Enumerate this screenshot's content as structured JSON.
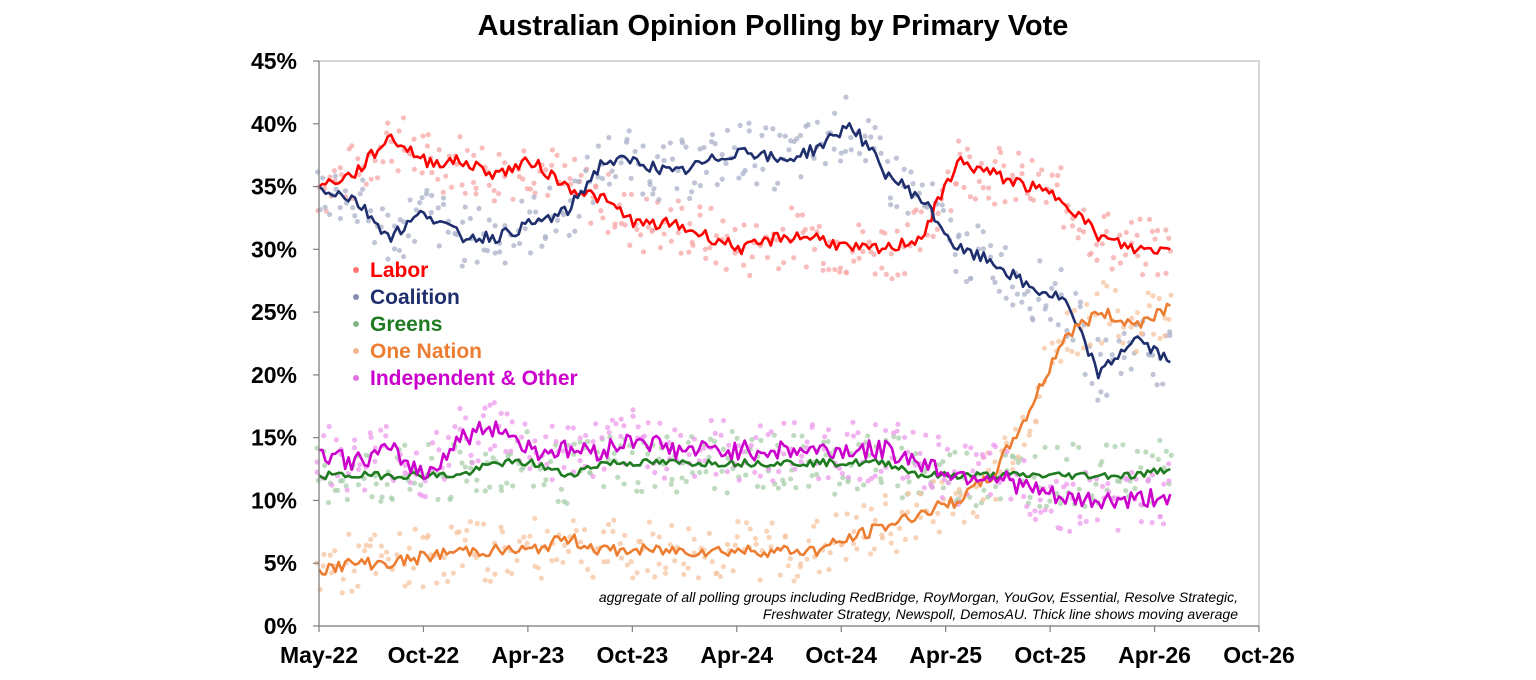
{
  "chart_data": {
    "type": "line",
    "title": "Australian Opinion Polling by Primary Vote",
    "x_ticks": [
      "May-22",
      "Oct-22",
      "Apr-23",
      "Oct-23",
      "Apr-24",
      "Oct-24",
      "Apr-25",
      "Oct-25",
      "Apr-26",
      "Oct-26"
    ],
    "y_ticks": [
      "0%",
      "5%",
      "10%",
      "15%",
      "20%",
      "25%",
      "30%",
      "35%",
      "40%",
      "45%"
    ],
    "ylim": [
      0,
      45
    ],
    "y_unit": "%",
    "grid": false,
    "legend_position": "left",
    "note_lines": [
      "aggregate of all polling groups including RedBridge, RoyMorgan, YouGov, Essential, Resolve Strategic,",
      "Freshwater Strategy, Newspoll, DemosAU. Thick line shows moving average"
    ],
    "x": [
      "2022-05",
      "2022-07",
      "2022-09",
      "2022-11",
      "2023-01",
      "2023-03",
      "2023-05",
      "2023-07",
      "2023-09",
      "2023-11",
      "2024-01",
      "2024-03",
      "2024-05",
      "2024-07",
      "2024-09",
      "2024-11",
      "2025-01",
      "2025-03",
      "2025-05",
      "2025-07",
      "2025-09",
      "2025-11",
      "2026-01",
      "2026-03",
      "2026-05"
    ],
    "series": [
      {
        "name": "Labor",
        "color": "#ff0000",
        "values": [
          35,
          36,
          39,
          37,
          37,
          36,
          37,
          35,
          34,
          32,
          32,
          31,
          30,
          31,
          31,
          30,
          30,
          31,
          37,
          36,
          35,
          34,
          31,
          30,
          30
        ]
      },
      {
        "name": "Coalition",
        "color": "#1f2f6e",
        "values": [
          35,
          34,
          31,
          33,
          31,
          31,
          32,
          33,
          37,
          37,
          36,
          37,
          38,
          37,
          38,
          40,
          36,
          34,
          30,
          29,
          27,
          26,
          20,
          23,
          21
        ]
      },
      {
        "name": "Greens",
        "color": "#1e7b20",
        "values": [
          12,
          12,
          12,
          12,
          12,
          13,
          13,
          12,
          13,
          13,
          13,
          13,
          13,
          13,
          13,
          13,
          13,
          12,
          12,
          12,
          12,
          12,
          12,
          12,
          12.5
        ]
      },
      {
        "name": "One Nation",
        "color": "#ed7d31",
        "values": [
          4.5,
          5,
          5,
          5.5,
          6,
          6,
          6,
          7,
          6,
          6,
          6,
          6,
          6,
          6,
          6,
          7,
          8,
          9,
          10,
          12,
          17,
          23,
          25,
          24,
          25.5
        ]
      },
      {
        "name": "Independent & Other",
        "color": "#cc00cc",
        "values": [
          14,
          13,
          14,
          12,
          15,
          16,
          14,
          14,
          14,
          15,
          14,
          14,
          14,
          14,
          14,
          14,
          14,
          13,
          12,
          12,
          11,
          10,
          10,
          10,
          10.5
        ]
      }
    ]
  }
}
